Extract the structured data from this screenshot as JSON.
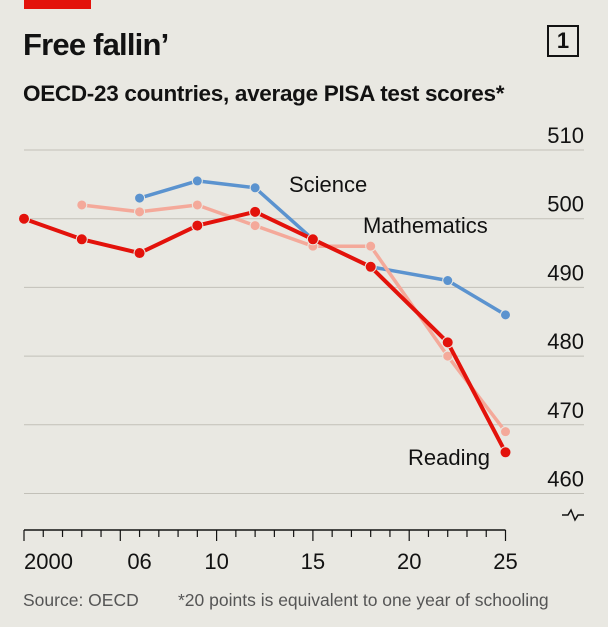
{
  "header": {
    "title": "Free fallin’",
    "badge": "1",
    "subtitle": "OECD-23 countries, average PISA test scores*"
  },
  "footer": {
    "source": "Source: OECD",
    "footnote": "*20 points is equivalent to one year of schooling"
  },
  "chart_data": {
    "type": "line",
    "title": "Free fallin’",
    "subtitle": "OECD-23 countries, average PISA test scores*",
    "xlabel": "",
    "ylabel": "",
    "xlim": [
      1999,
      2025.5
    ],
    "ylim": [
      458,
      510
    ],
    "y_axis_break": true,
    "y_ticks": [
      510,
      500,
      490,
      480,
      470,
      460
    ],
    "x_ticks": [
      2000,
      2006,
      2010,
      2015,
      2020,
      2025
    ],
    "x_tick_labels": [
      "2000",
      "06",
      "10",
      "15",
      "20",
      "25"
    ],
    "grid": true,
    "legend": "direct labels",
    "series": [
      {
        "name": "Science",
        "color": "#5b93cf",
        "x": [
          2006,
          2009,
          2012,
          2015,
          2018,
          2022,
          2025
        ],
        "y": [
          503,
          505.5,
          504.5,
          497,
          493,
          491,
          486
        ]
      },
      {
        "name": "Mathematics",
        "color": "#f4a99a",
        "x": [
          2003,
          2006,
          2009,
          2012,
          2015,
          2018,
          2022,
          2025
        ],
        "y": [
          502,
          501,
          502,
          499,
          496,
          496,
          480,
          469
        ]
      },
      {
        "name": "Reading",
        "color": "#e3120b",
        "x": [
          2000,
          2003,
          2006,
          2009,
          2012,
          2015,
          2018,
          2022,
          2025
        ],
        "y": [
          500,
          497,
          495,
          499,
          501,
          497,
          493,
          482,
          466
        ]
      }
    ]
  }
}
